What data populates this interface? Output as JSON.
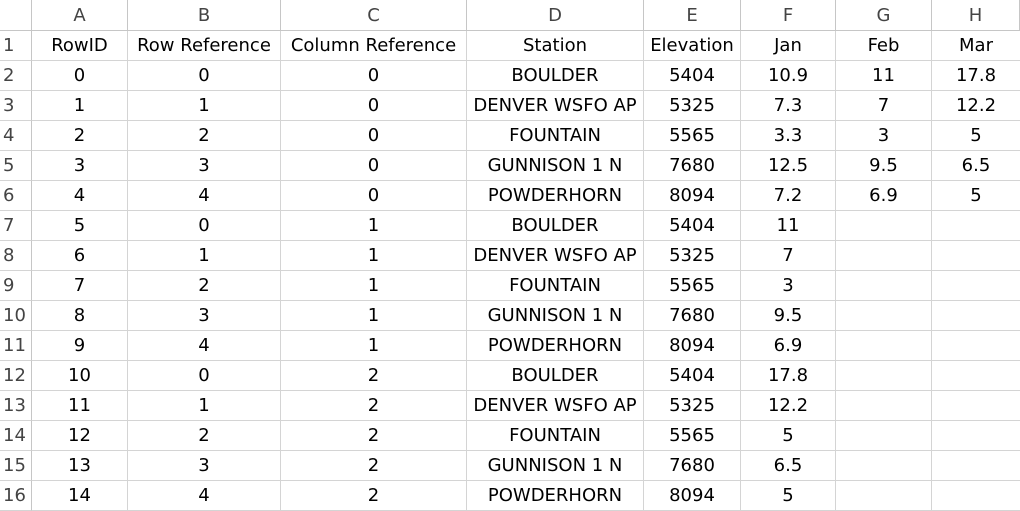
{
  "column_letters": [
    "A",
    "B",
    "C",
    "D",
    "E",
    "F",
    "G",
    "H"
  ],
  "rows": [
    {
      "num": "1",
      "cells": [
        "RowID",
        "Row Reference",
        "Column Reference",
        "Station",
        "Elevation",
        "Jan",
        "Feb",
        "Mar"
      ]
    },
    {
      "num": "2",
      "cells": [
        "0",
        "0",
        "0",
        "BOULDER",
        "5404",
        "10.9",
        "11",
        "17.8"
      ]
    },
    {
      "num": "3",
      "cells": [
        "1",
        "1",
        "0",
        "DENVER WSFO AP",
        "5325",
        "7.3",
        "7",
        "12.2"
      ]
    },
    {
      "num": "4",
      "cells": [
        "2",
        "2",
        "0",
        "FOUNTAIN",
        "5565",
        "3.3",
        "3",
        "5"
      ]
    },
    {
      "num": "5",
      "cells": [
        "3",
        "3",
        "0",
        "GUNNISON 1 N",
        "7680",
        "12.5",
        "9.5",
        "6.5"
      ]
    },
    {
      "num": "6",
      "cells": [
        "4",
        "4",
        "0",
        "POWDERHORN",
        "8094",
        "7.2",
        "6.9",
        "5"
      ]
    },
    {
      "num": "7",
      "cells": [
        "5",
        "0",
        "1",
        "BOULDER",
        "5404",
        "11",
        "",
        ""
      ]
    },
    {
      "num": "8",
      "cells": [
        "6",
        "1",
        "1",
        "DENVER WSFO AP",
        "5325",
        "7",
        "",
        ""
      ]
    },
    {
      "num": "9",
      "cells": [
        "7",
        "2",
        "1",
        "FOUNTAIN",
        "5565",
        "3",
        "",
        ""
      ]
    },
    {
      "num": "10",
      "cells": [
        "8",
        "3",
        "1",
        "GUNNISON 1 N",
        "7680",
        "9.5",
        "",
        ""
      ]
    },
    {
      "num": "11",
      "cells": [
        "9",
        "4",
        "1",
        "POWDERHORN",
        "8094",
        "6.9",
        "",
        ""
      ]
    },
    {
      "num": "12",
      "cells": [
        "10",
        "0",
        "2",
        "BOULDER",
        "5404",
        "17.8",
        "",
        ""
      ]
    },
    {
      "num": "13",
      "cells": [
        "11",
        "1",
        "2",
        "DENVER WSFO AP",
        "5325",
        "12.2",
        "",
        ""
      ]
    },
    {
      "num": "14",
      "cells": [
        "12",
        "2",
        "2",
        "FOUNTAIN",
        "5565",
        "5",
        "",
        ""
      ]
    },
    {
      "num": "15",
      "cells": [
        "13",
        "3",
        "2",
        "GUNNISON 1 N",
        "7680",
        "6.5",
        "",
        ""
      ]
    },
    {
      "num": "16",
      "cells": [
        "14",
        "4",
        "2",
        "POWDERHORN",
        "8094",
        "5",
        "",
        ""
      ]
    }
  ]
}
